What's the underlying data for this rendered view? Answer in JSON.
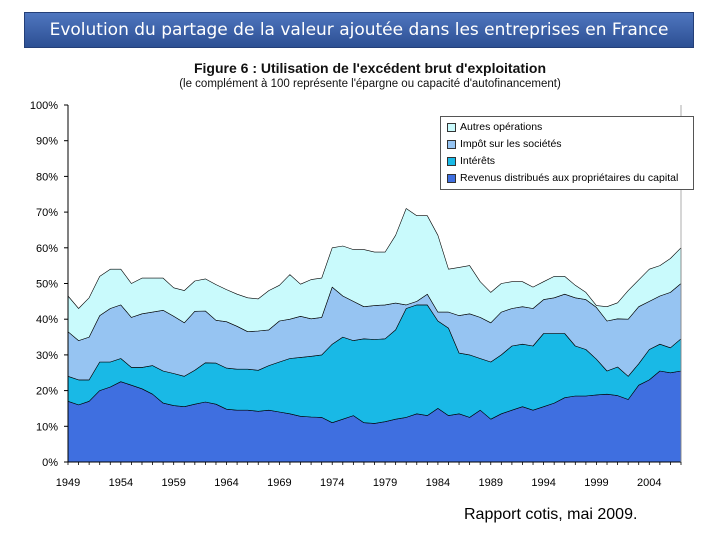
{
  "banner": {
    "title": "Evolution du partage de la valeur ajoutée dans les entreprises en France"
  },
  "footer": {
    "source": "Rapport cotis, mai 2009."
  },
  "chart_data": {
    "type": "area",
    "title": "Figure 6 : Utilisation de l'excédent brut d'exploitation",
    "subtitle": "(le complément à 100 représente l'épargne ou capacité d'autofinancement)",
    "stacked": true,
    "xlim": [
      1949,
      2007
    ],
    "ylim": [
      0,
      100
    ],
    "x_ticks": [
      "1949",
      "1954",
      "1959",
      "1964",
      "1969",
      "1974",
      "1979",
      "1984",
      "1989",
      "1994",
      "1999",
      "2004"
    ],
    "y_ticks": [
      "0%",
      "10%",
      "20%",
      "30%",
      "40%",
      "50%",
      "60%",
      "70%",
      "80%",
      "90%",
      "100%"
    ],
    "grid": false,
    "legend_position": "top-right",
    "x": [
      1949,
      1950,
      1951,
      1952,
      1953,
      1954,
      1955,
      1956,
      1957,
      1958,
      1959,
      1960,
      1961,
      1962,
      1963,
      1964,
      1965,
      1966,
      1967,
      1968,
      1969,
      1970,
      1971,
      1972,
      1973,
      1974,
      1975,
      1976,
      1977,
      1978,
      1979,
      1980,
      1981,
      1982,
      1983,
      1984,
      1985,
      1986,
      1987,
      1988,
      1989,
      1990,
      1991,
      1992,
      1993,
      1994,
      1995,
      1996,
      1997,
      1998,
      1999,
      2000,
      2001,
      2002,
      2003,
      2004,
      2005,
      2006,
      2007
    ],
    "series": [
      {
        "name": "Revenus distribués aux propriétaires du capital",
        "color": "#3f6fe0",
        "values": [
          17,
          16,
          17,
          20,
          21,
          22.5,
          21.5,
          20.5,
          19,
          16.5,
          15.8,
          15.5,
          16.2,
          16.8,
          16.2,
          14.8,
          14.5,
          14.5,
          14.2,
          14.5,
          14.0,
          13.5,
          12.8,
          12.6,
          12.5,
          11.0,
          12.0,
          13.0,
          11.0,
          10.8,
          11.3,
          12.0,
          12.5,
          13.5,
          13.0,
          15.0,
          13.0,
          13.5,
          12.5,
          14.5,
          12.0,
          13.5,
          14.5,
          15.5,
          14.5,
          15.5,
          16.5,
          18.0,
          18.5,
          18.5,
          18.8,
          19.0,
          18.6,
          17.5,
          21.5,
          23,
          25.5,
          25,
          25.5
        ]
      },
      {
        "name": "Intérêts",
        "color": "#19b9e6",
        "values": [
          7,
          7,
          6,
          8,
          7,
          6.5,
          5,
          6,
          8,
          9,
          9,
          8.5,
          9.5,
          11,
          11.5,
          11.5,
          11.5,
          11.5,
          11.5,
          12.5,
          14,
          15.5,
          16.5,
          17,
          17.5,
          22,
          23,
          21,
          23.5,
          23.5,
          23.2,
          25,
          30.5,
          30.5,
          31,
          24.5,
          24.5,
          17,
          17.5,
          14.5,
          16,
          16.5,
          18,
          17.5,
          18,
          20.5,
          19.5,
          18,
          14,
          13,
          10,
          6.5,
          8,
          6.5,
          6,
          8.5,
          7.5,
          7,
          9
        ]
      },
      {
        "name": "Impôt sur les sociétés",
        "color": "#96c4f2",
        "values": [
          12.5,
          11,
          12,
          13,
          15,
          15,
          14,
          15,
          15,
          17,
          16,
          15,
          16.5,
          14.5,
          12,
          13,
          12,
          10.5,
          11,
          10,
          11.5,
          11,
          11.5,
          10.5,
          10.5,
          16,
          11.5,
          11,
          9,
          9.5,
          9.5,
          7.5,
          1,
          1,
          3,
          2.5,
          4.5,
          10.5,
          11.5,
          11.5,
          11,
          12,
          10.5,
          10.5,
          10.5,
          9.5,
          10,
          11,
          13.5,
          14,
          14.5,
          14,
          13.5,
          16,
          16,
          13.5,
          13.5,
          15.5,
          15.5
        ]
      },
      {
        "name": "Autres opérations",
        "color": "#c9fafc",
        "values": [
          10,
          9,
          11,
          11,
          11,
          10,
          9.5,
          10,
          9.5,
          9,
          8,
          9,
          8.5,
          9,
          10,
          9,
          9,
          9.5,
          9,
          11,
          10,
          12.5,
          9,
          11,
          11,
          11,
          14,
          14.5,
          16,
          15,
          14.8,
          19,
          27,
          24,
          22,
          21.5,
          12,
          13.5,
          13.5,
          10,
          8.5,
          8,
          7.5,
          7,
          6,
          5,
          6,
          5,
          3.5,
          2,
          0.5,
          4,
          4.5,
          8,
          7.5,
          9,
          8.5,
          9.5,
          10
        ]
      }
    ]
  }
}
